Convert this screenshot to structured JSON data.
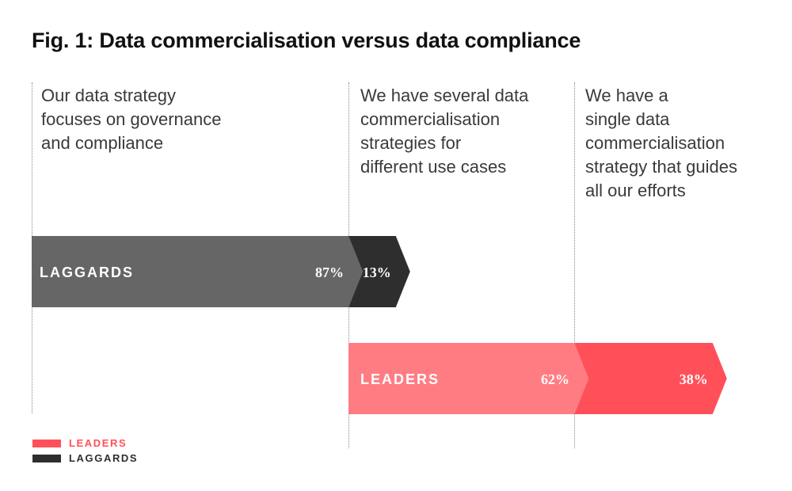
{
  "title": "Fig. 1: Data commercialisation versus data compliance",
  "columns": [
    {
      "lines": [
        "Our data strategy",
        "focuses on governance",
        "and compliance"
      ]
    },
    {
      "lines": [
        "We have several data",
        "commercialisation",
        "strategies for",
        "different use cases"
      ]
    },
    {
      "lines": [
        "We have a",
        "single data",
        "commercialisation",
        "strategy that guides",
        "all our efforts"
      ]
    }
  ],
  "legend": [
    {
      "label": "LEADERS",
      "color": "#ff505a"
    },
    {
      "label": "LAGGARDS",
      "color": "#2e2e2e"
    }
  ],
  "chart_data": {
    "type": "bar",
    "subtype": "stacked-horizontal-chevron",
    "title": "Fig. 1: Data commercialisation versus data compliance",
    "categories": [
      "Our data strategy focuses on governance and compliance",
      "We have several data commercialisation strategies for different use cases",
      "We have a single data commercialisation strategy that guides all our efforts"
    ],
    "unit": "%",
    "series": [
      {
        "name": "LAGGARDS",
        "start_category_index": 0,
        "segments": [
          {
            "category": "Our data strategy focuses on governance and compliance",
            "value": 87,
            "label": "87%",
            "color": "#666666"
          },
          {
            "category": "We have several data commercialisation strategies for different use cases",
            "value": 13,
            "label": "13%",
            "color": "#2e2e2e"
          }
        ]
      },
      {
        "name": "LEADERS",
        "start_category_index": 1,
        "segments": [
          {
            "category": "We have several data commercialisation strategies for different use cases",
            "value": 62,
            "label": "62%",
            "color": "#ff7c83"
          },
          {
            "category": "We have a single data commercialisation strategy that guides all our efforts",
            "value": 38,
            "label": "38%",
            "color": "#ff505a"
          }
        ]
      }
    ],
    "legend_position": "bottom-left",
    "grid": false
  }
}
